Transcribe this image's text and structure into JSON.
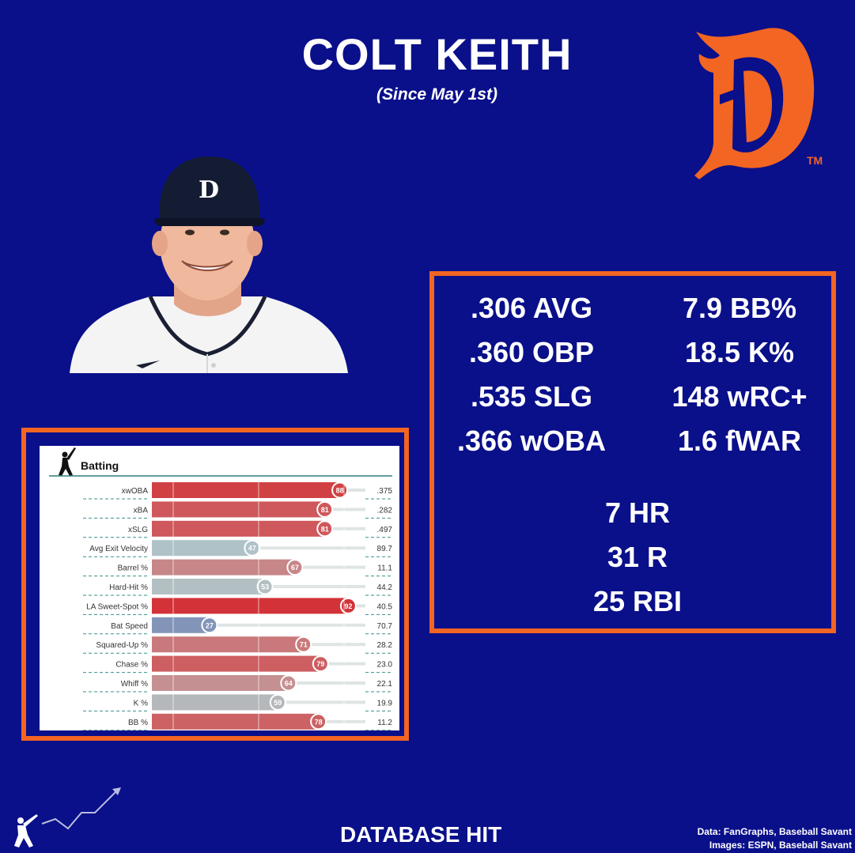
{
  "header": {
    "title": "COLT KEITH",
    "subtitle": "(Since May 1st)"
  },
  "logo": {
    "icon": "tigers-old-english-d-logo",
    "color": "#f26522",
    "trademark": "TM"
  },
  "player_photo": {
    "icon": "player-headshot"
  },
  "stats": {
    "left": [
      ".306 AVG",
      ".360 OBP",
      ".535 SLG",
      ".366 wOBA"
    ],
    "right": [
      "7.9 BB%",
      "18.5 K%",
      "148 wRC+",
      "1.6 fWAR"
    ],
    "counting": [
      "7 HR",
      "31 R",
      "25 RBI"
    ]
  },
  "colors": {
    "background": "#0a0f8a",
    "accent": "#f26522"
  },
  "chart_data": {
    "type": "bar",
    "title": "Batting",
    "categories": [
      "xwOBA",
      "xBA",
      "xSLG",
      "Avg Exit Velocity",
      "Barrel %",
      "Hard-Hit %",
      "LA Sweet-Spot %",
      "Bat Speed",
      "Squared-Up %",
      "Chase %",
      "Whiff %",
      "K %",
      "BB %"
    ],
    "values": [
      88,
      81,
      81,
      47,
      67,
      53,
      92,
      27,
      71,
      79,
      64,
      59,
      78
    ],
    "stat_values": [
      ".375",
      ".282",
      ".497",
      "89.7",
      "11.1",
      "44.2",
      "40.5",
      "70.7",
      "28.2",
      "23.0",
      "22.1",
      "19.9",
      "11.2"
    ],
    "xlim": [
      0,
      100
    ],
    "grid": true
  },
  "footer": {
    "brand": "DATABASE HIT",
    "credits_line1": "Data: FanGraphs, Baseball Savant",
    "credits_line2": "Images: ESPN, Baseball Savant"
  }
}
